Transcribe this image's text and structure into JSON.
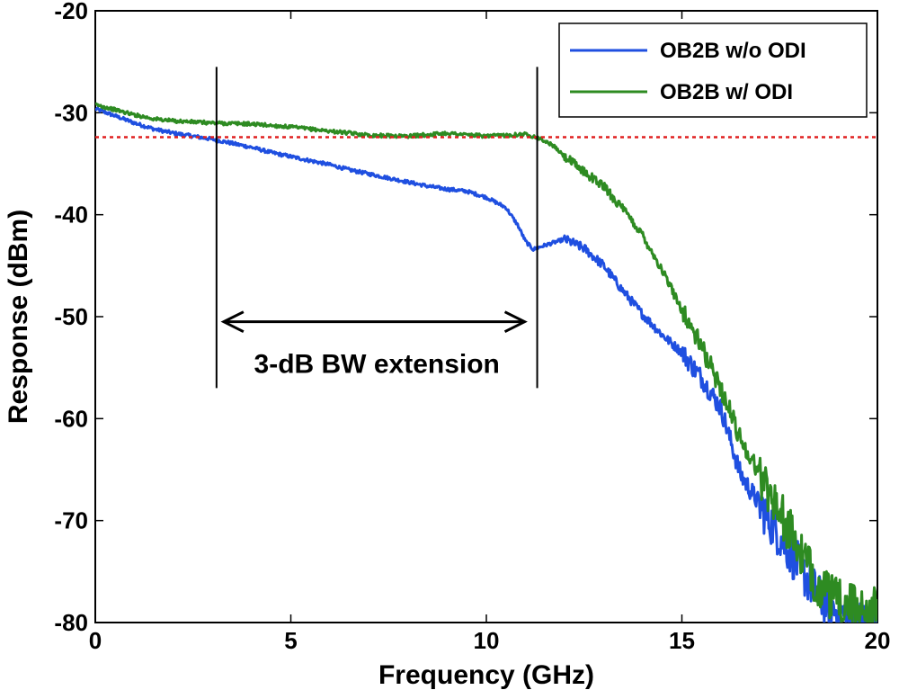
{
  "chart_data": {
    "type": "line",
    "xlabel": "Frequency (GHz)",
    "ylabel": "Response (dBm)",
    "xlim": [
      0,
      20
    ],
    "ylim": [
      -80,
      -20
    ],
    "xticks": [
      0,
      5,
      10,
      15,
      20
    ],
    "yticks": [
      -20,
      -30,
      -40,
      -50,
      -60,
      -70,
      -80
    ],
    "grid": false,
    "legend_position": "top-right",
    "series": [
      {
        "name": "OB2B w/o ODI",
        "color": "#1f4fe0",
        "points": [
          [
            0,
            -29.6
          ],
          [
            0.5,
            -30.3
          ],
          [
            1,
            -31.0
          ],
          [
            1.5,
            -31.6
          ],
          [
            2,
            -32.0
          ],
          [
            2.5,
            -32.3
          ],
          [
            3,
            -32.6
          ],
          [
            3.5,
            -33.0
          ],
          [
            4,
            -33.4
          ],
          [
            4.5,
            -33.9
          ],
          [
            5,
            -34.3
          ],
          [
            5.5,
            -34.7
          ],
          [
            6,
            -35.1
          ],
          [
            6.5,
            -35.6
          ],
          [
            7,
            -36.0
          ],
          [
            7.5,
            -36.4
          ],
          [
            8,
            -36.8
          ],
          [
            8.5,
            -37.2
          ],
          [
            9,
            -37.5
          ],
          [
            9.5,
            -37.7
          ],
          [
            10,
            -38.3
          ],
          [
            10.5,
            -39.3
          ],
          [
            10.8,
            -41.0
          ],
          [
            11,
            -42.6
          ],
          [
            11.2,
            -43.4
          ],
          [
            11.5,
            -43.0
          ],
          [
            12,
            -42.4
          ],
          [
            12.5,
            -43.3
          ],
          [
            13,
            -45.0
          ],
          [
            13.5,
            -47.5
          ],
          [
            14,
            -49.8
          ],
          [
            14.5,
            -51.8
          ],
          [
            15,
            -53.5
          ],
          [
            15.5,
            -56.0
          ],
          [
            16,
            -59.0
          ],
          [
            16.5,
            -65.5
          ],
          [
            17,
            -68.5
          ],
          [
            17.5,
            -71.5
          ],
          [
            18,
            -74.5
          ],
          [
            18.5,
            -77.5
          ],
          [
            19,
            -79.0
          ],
          [
            19.5,
            -80
          ],
          [
            20,
            -80
          ]
        ]
      },
      {
        "name": "OB2B w/ ODI",
        "color": "#2e8b22",
        "points": [
          [
            0,
            -29.2
          ],
          [
            0.5,
            -29.7
          ],
          [
            1,
            -30.2
          ],
          [
            1.5,
            -30.6
          ],
          [
            2,
            -30.8
          ],
          [
            2.5,
            -30.9
          ],
          [
            3,
            -31.0
          ],
          [
            4,
            -31.1
          ],
          [
            5,
            -31.4
          ],
          [
            6,
            -31.8
          ],
          [
            7,
            -32.2
          ],
          [
            8,
            -32.3
          ],
          [
            9,
            -32.0
          ],
          [
            10,
            -32.3
          ],
          [
            11,
            -32.1
          ],
          [
            11.3,
            -32.4
          ],
          [
            11.7,
            -33.2
          ],
          [
            12,
            -34.3
          ],
          [
            12.5,
            -35.8
          ],
          [
            13,
            -37.2
          ],
          [
            13.5,
            -39.5
          ],
          [
            14,
            -42.0
          ],
          [
            14.5,
            -45.5
          ],
          [
            15,
            -49.3
          ],
          [
            15.5,
            -53.0
          ],
          [
            16,
            -57.0
          ],
          [
            16.5,
            -62.0
          ],
          [
            17,
            -65.5
          ],
          [
            17.5,
            -69.0
          ],
          [
            18,
            -73.0
          ],
          [
            18.5,
            -76.5
          ],
          [
            19,
            -78.0
          ],
          [
            19.5,
            -78.5
          ],
          [
            20,
            -78.8
          ]
        ]
      }
    ],
    "threshold": {
      "y": -32.4,
      "color": "#e02020"
    },
    "bw_markers": {
      "left_x": 3.1,
      "right_x": 11.3
    },
    "annotation": "3-dB BW extension"
  }
}
